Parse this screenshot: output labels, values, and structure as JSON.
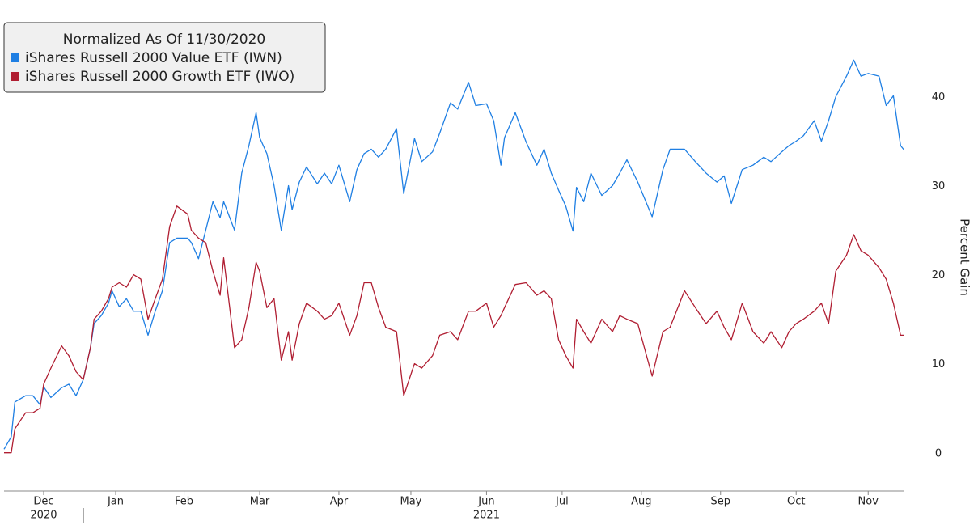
{
  "chart_data": {
    "type": "line",
    "legend_title": "Normalized As Of 11/30/2020",
    "y_label": "Percent Gain",
    "x": [
      0,
      2,
      3,
      6,
      8,
      10,
      11,
      13,
      16,
      18,
      20,
      22,
      24,
      25,
      27,
      29,
      30,
      32,
      34,
      36,
      38,
      40,
      42,
      44,
      46,
      48,
      51,
      52,
      54,
      56,
      58,
      60,
      61,
      64,
      66,
      68,
      70,
      71,
      73,
      75,
      77,
      79,
      80,
      82,
      84,
      87,
      89,
      91,
      93,
      96,
      98,
      100,
      102,
      104,
      106,
      109,
      111,
      114,
      116,
      119,
      121,
      124,
      126,
      129,
      131,
      134,
      136,
      138,
      139,
      142,
      145,
      148,
      150,
      152,
      154,
      156,
      158,
      159,
      161,
      163,
      166,
      169,
      171,
      173,
      176,
      180,
      183,
      185,
      189,
      192,
      195,
      198,
      200,
      202,
      205,
      208,
      211,
      213,
      216,
      218,
      220,
      222,
      225,
      227,
      229,
      231,
      234,
      236,
      238,
      240,
      243,
      245,
      247,
      249,
      250
    ],
    "series": [
      {
        "name": "iShares Russell 2000 Value ETF (IWN)",
        "color": "#1f7fe3",
        "values": [
          0.5,
          1.9,
          5.8,
          6.5,
          6.5,
          5.5,
          7.5,
          6.3,
          7.4,
          7.8,
          6.5,
          8.3,
          11.9,
          14.6,
          15.5,
          16.9,
          18.3,
          16.5,
          17.4,
          16,
          16,
          13.3,
          16,
          18.3,
          23.7,
          24.2,
          24.2,
          23.7,
          21.9,
          25.1,
          28.3,
          26.5,
          28.3,
          25.1,
          31.5,
          34.6,
          38.3,
          35.5,
          33.7,
          30.1,
          25.1,
          30.1,
          27.4,
          30.5,
          32.2,
          30.3,
          31.5,
          30.3,
          32.4,
          28.3,
          31.9,
          33.7,
          34.2,
          33.3,
          34.2,
          36.5,
          29.2,
          35.4,
          32.8,
          33.9,
          36,
          39.4,
          38.7,
          41.7,
          39.1,
          39.3,
          37.4,
          32.4,
          35.5,
          38.3,
          35,
          32.4,
          34.2,
          31.5,
          29.6,
          27.8,
          25,
          29.9,
          28.3,
          31.5,
          29,
          30.1,
          31.5,
          33,
          30.5,
          26.6,
          31.9,
          34.2,
          34.2,
          32.8,
          31.5,
          30.5,
          31.2,
          28.1,
          31.9,
          32.4,
          33.3,
          32.8,
          33.9,
          34.6,
          35.1,
          35.7,
          37.4,
          35.1,
          37.4,
          40.1,
          42.4,
          44.2,
          42.4,
          42.7,
          42.4,
          39.1,
          40.2,
          34.6,
          34.1
        ]
      },
      {
        "name": "iShares Russell 2000 Growth ETF (IWO)",
        "color": "#b01e32",
        "values": [
          0.1,
          0.1,
          2.8,
          4.6,
          4.6,
          5.1,
          7.8,
          9.6,
          12.1,
          11,
          9.2,
          8.3,
          11.9,
          15.1,
          16,
          17.4,
          18.7,
          19.2,
          18.7,
          20.1,
          19.6,
          15.1,
          17.4,
          19.6,
          25.5,
          27.8,
          26.9,
          25.1,
          24.2,
          23.7,
          20.5,
          17.8,
          22,
          11.9,
          12.8,
          16.4,
          21.5,
          20.5,
          16.4,
          17.4,
          10.5,
          13.7,
          10.5,
          14.6,
          16.9,
          16,
          15.1,
          15.5,
          16.9,
          13.3,
          15.5,
          19.2,
          19.2,
          16.4,
          14.2,
          13.7,
          6.5,
          10.1,
          9.6,
          11,
          13.3,
          13.7,
          12.8,
          16,
          16,
          16.9,
          14.2,
          15.5,
          16.4,
          19,
          19.2,
          17.8,
          18.3,
          17.4,
          12.8,
          11,
          9.6,
          15.1,
          13.7,
          12.4,
          15.1,
          13.7,
          15.5,
          15.1,
          14.6,
          8.7,
          13.7,
          14.2,
          18.3,
          16.4,
          14.6,
          16,
          14.2,
          12.8,
          16.9,
          13.7,
          12.4,
          13.7,
          11.9,
          13.7,
          14.6,
          15.1,
          16,
          16.9,
          14.6,
          20.5,
          22.3,
          24.6,
          22.8,
          22.3,
          20.9,
          19.6,
          16.9,
          13.3,
          13.3
        ]
      }
    ],
    "xlim": [
      0,
      255
    ],
    "xticks": [
      {
        "value": 11,
        "label": "Dec"
      },
      {
        "value": 31,
        "label": "Jan"
      },
      {
        "value": 50,
        "label": "Feb"
      },
      {
        "value": 71,
        "label": "Mar"
      },
      {
        "value": 93,
        "label": "Apr"
      },
      {
        "value": 113,
        "label": "May"
      },
      {
        "value": 134,
        "label": "Jun"
      },
      {
        "value": 155,
        "label": "Jul"
      },
      {
        "value": 177,
        "label": "Aug"
      },
      {
        "value": 199,
        "label": "Sep"
      },
      {
        "value": 220,
        "label": "Oct"
      },
      {
        "value": 240,
        "label": "Nov"
      }
    ],
    "year_labels": [
      {
        "value": 11,
        "label": "2020"
      },
      {
        "value": 134,
        "label": "2021"
      }
    ],
    "ylim": [
      -4.2,
      50.5
    ],
    "yticks": [
      0,
      10,
      20,
      30,
      40
    ],
    "grid": false
  }
}
